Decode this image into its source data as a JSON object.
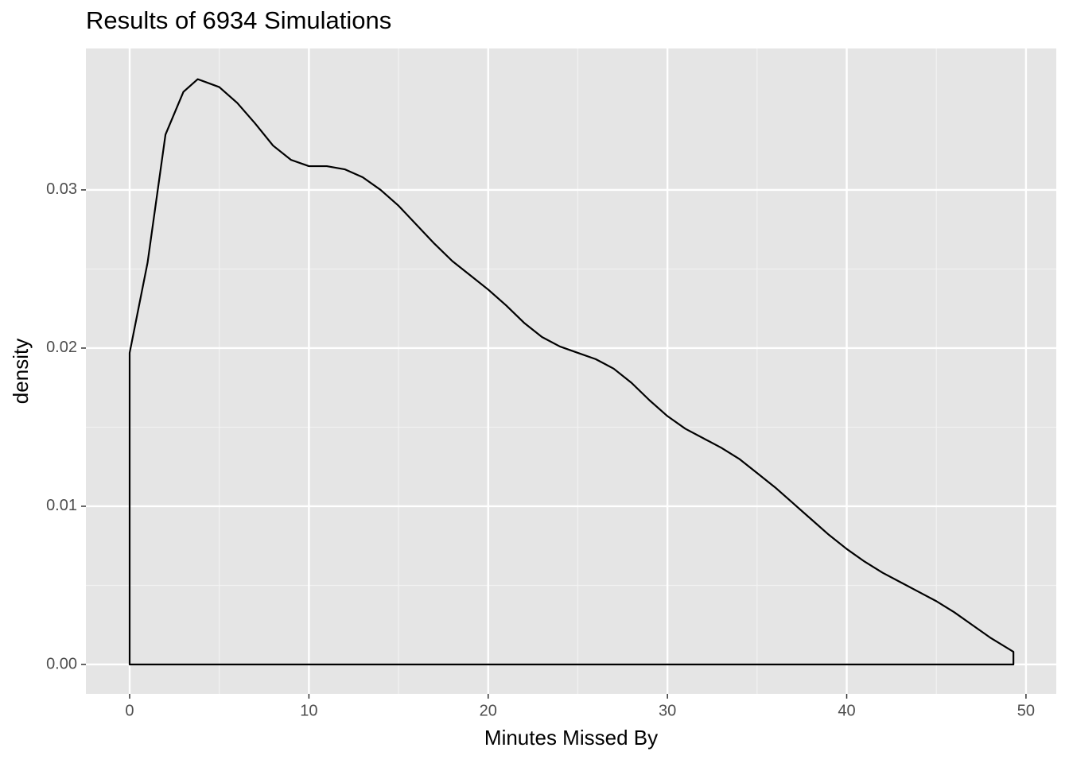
{
  "chart_data": {
    "type": "density",
    "title": "Results of 6934 Simulations",
    "x_label": "Minutes Missed By",
    "y_label": "density",
    "xlim": [
      -2.44,
      51.69
    ],
    "ylim": [
      -0.00186,
      0.03894
    ],
    "xticks": [
      0,
      10,
      20,
      30,
      40,
      50
    ],
    "yticks": [
      {
        "value": 0,
        "label": "0.00"
      },
      0.01,
      0.02,
      0.03
    ],
    "grid": true,
    "series": [
      {
        "color": "#000000",
        "x": [
          0,
          1,
          2,
          3,
          3.8,
          5,
          6,
          7,
          8,
          9,
          10,
          11,
          12,
          13,
          14,
          15,
          16,
          17,
          18,
          19,
          20,
          21,
          22,
          23,
          24,
          25,
          26,
          27,
          28,
          29,
          30,
          31,
          32,
          33,
          34,
          35,
          36,
          37,
          38,
          39,
          40,
          41,
          42,
          43,
          44,
          45,
          46,
          47,
          48,
          49.3
        ],
        "values": [
          0.0197,
          0.0254,
          0.0335,
          0.0362,
          0.037,
          0.0365,
          0.0355,
          0.0342,
          0.0328,
          0.0319,
          0.0315,
          0.0315,
          0.0313,
          0.0308,
          0.03,
          0.029,
          0.0278,
          0.0266,
          0.0255,
          0.0246,
          0.0237,
          0.0227,
          0.0216,
          0.0207,
          0.0201,
          0.0197,
          0.0193,
          0.0187,
          0.0178,
          0.0167,
          0.0157,
          0.0149,
          0.0143,
          0.0137,
          0.013,
          0.0121,
          0.0112,
          0.0102,
          0.0092,
          0.0082,
          0.0073,
          0.0065,
          0.0058,
          0.0052,
          0.0046,
          0.004,
          0.0033,
          0.0025,
          0.0017,
          0.0008
        ]
      }
    ]
  }
}
